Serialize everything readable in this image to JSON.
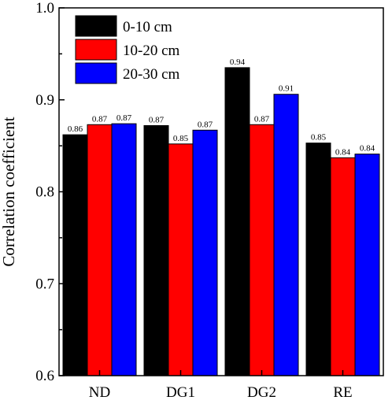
{
  "chart_data": {
    "type": "bar",
    "title": "",
    "xlabel": "",
    "ylabel": "Correlation coefficient",
    "ylim": [
      0.6,
      1.0
    ],
    "yticks": [
      "0.6",
      "0.7",
      "0.8",
      "0.9",
      "1.0"
    ],
    "categories": [
      "ND",
      "DG1",
      "DG2",
      "RE"
    ],
    "series": [
      {
        "name": "0-10 cm",
        "color": "#000000",
        "values": [
          0.862,
          0.872,
          0.935,
          0.853
        ],
        "labels": [
          "0.86",
          "0.87",
          "0.94",
          "0.85"
        ]
      },
      {
        "name": "10-20 cm",
        "color": "#ff0000",
        "values": [
          0.873,
          0.852,
          0.873,
          0.837
        ],
        "labels": [
          "0.87",
          "0.85",
          "0.87",
          "0.84"
        ]
      },
      {
        "name": "20-30 cm",
        "color": "#0000ff",
        "values": [
          0.874,
          0.867,
          0.906,
          0.841
        ],
        "labels": [
          "0.87",
          "0.87",
          "0.91",
          "0.84"
        ]
      }
    ],
    "legend": "top-left",
    "grid": false
  }
}
